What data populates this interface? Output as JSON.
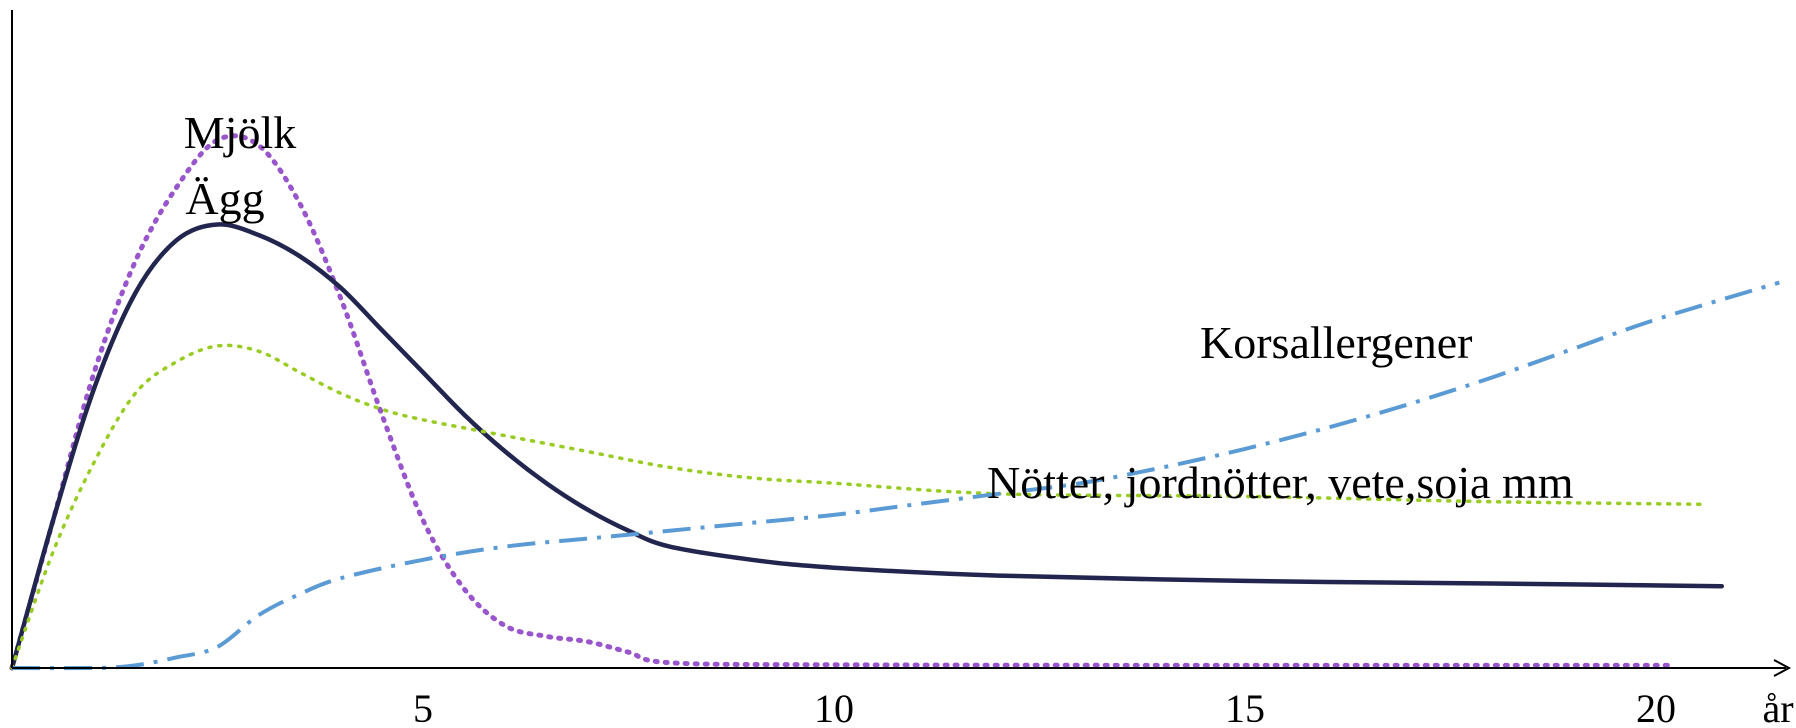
{
  "chart_data": {
    "type": "line",
    "title": "",
    "xlabel": "år",
    "ylabel": "",
    "xlim": [
      0,
      21.8
    ],
    "ylim": [
      0,
      100
    ],
    "grid": false,
    "legend": "none",
    "x_ticks": [
      5,
      10,
      15,
      20
    ],
    "series": [
      {
        "name": "Mjölk",
        "color": "#9955CC",
        "style": "dotted",
        "points": [
          [
            0,
            0
          ],
          [
            0.5,
            28
          ],
          [
            1,
            56
          ],
          [
            1.5,
            77
          ],
          [
            2,
            91
          ],
          [
            2.5,
            100
          ],
          [
            3,
            99
          ],
          [
            3.5,
            88
          ],
          [
            4,
            70
          ],
          [
            4.5,
            48
          ],
          [
            5,
            28
          ],
          [
            5.5,
            15
          ],
          [
            6,
            8
          ],
          [
            6.5,
            6
          ],
          [
            7,
            5
          ],
          [
            7.5,
            3
          ],
          [
            8,
            1
          ],
          [
            10,
            0.6
          ],
          [
            15,
            0.5
          ],
          [
            20.2,
            0.5
          ]
        ]
      },
      {
        "name": "Ägg",
        "color": "#22264F",
        "style": "solid",
        "points": [
          [
            0,
            0
          ],
          [
            0.5,
            28
          ],
          [
            1,
            53
          ],
          [
            1.5,
            71
          ],
          [
            2,
            81
          ],
          [
            2.5,
            84
          ],
          [
            3,
            82
          ],
          [
            3.5,
            78
          ],
          [
            4,
            72
          ],
          [
            4.5,
            64
          ],
          [
            5,
            56
          ],
          [
            5.5,
            48
          ],
          [
            6,
            41
          ],
          [
            6.5,
            35
          ],
          [
            7,
            30
          ],
          [
            7.5,
            26
          ],
          [
            8,
            23
          ],
          [
            9,
            20.5
          ],
          [
            10,
            19
          ],
          [
            12,
            17.5
          ],
          [
            15,
            16.5
          ],
          [
            18,
            16
          ],
          [
            20.8,
            15.5
          ]
        ]
      },
      {
        "name": "Nötter, jordnötter, vete,soja mm",
        "color": "#99CC22",
        "style": "dotted",
        "points": [
          [
            0,
            0
          ],
          [
            0.5,
            22
          ],
          [
            1,
            39
          ],
          [
            1.5,
            52
          ],
          [
            2,
            58
          ],
          [
            2.5,
            61
          ],
          [
            3,
            60
          ],
          [
            3.5,
            56
          ],
          [
            4,
            52
          ],
          [
            4.5,
            49
          ],
          [
            5,
            47
          ],
          [
            6,
            44
          ],
          [
            7,
            41
          ],
          [
            8,
            38
          ],
          [
            9,
            36
          ],
          [
            10,
            35
          ],
          [
            12,
            33
          ],
          [
            15,
            32.5
          ],
          [
            18,
            31.5
          ],
          [
            20.6,
            31
          ]
        ]
      },
      {
        "name": "Korsallergener",
        "color": "#5B9BD5",
        "style": "dash-dot",
        "points": [
          [
            0,
            0
          ],
          [
            1,
            0
          ],
          [
            1.5,
            0.5
          ],
          [
            2,
            2
          ],
          [
            2.5,
            4
          ],
          [
            3,
            10
          ],
          [
            3.5,
            14
          ],
          [
            4,
            17
          ],
          [
            5,
            20.5
          ],
          [
            6,
            23
          ],
          [
            7,
            24.5
          ],
          [
            8,
            26
          ],
          [
            9,
            27.5
          ],
          [
            10,
            29
          ],
          [
            11,
            31
          ],
          [
            12,
            33
          ],
          [
            13,
            35
          ],
          [
            14,
            38
          ],
          [
            15,
            41.5
          ],
          [
            16,
            45.5
          ],
          [
            17,
            50
          ],
          [
            18,
            55
          ],
          [
            19,
            60.5
          ],
          [
            20,
            66
          ],
          [
            21.5,
            73
          ]
        ]
      }
    ],
    "annotations": [
      {
        "text": "Mjölk",
        "series": "Mjölk"
      },
      {
        "text": "Ägg",
        "series": "Ägg"
      },
      {
        "text": "Korsallergener",
        "series": "Korsallergener"
      },
      {
        "text": "Nötter, jordnötter, vete,soja mm",
        "series": "Nötter, jordnötter, vete,soja mm"
      }
    ]
  }
}
